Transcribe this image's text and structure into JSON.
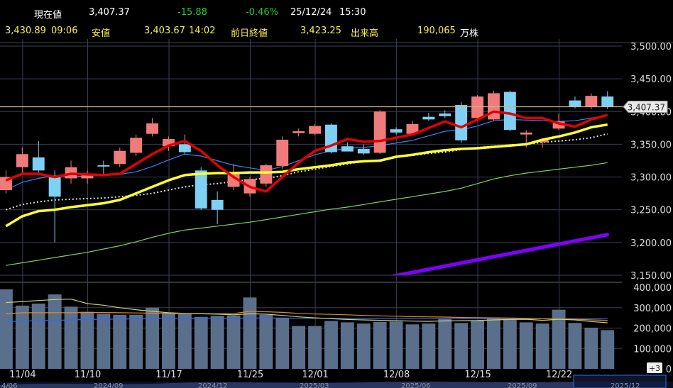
{
  "header": {
    "row1": {
      "label_current": "現在値",
      "current": "3,407.37",
      "change": "-15.88",
      "change_pct": "-0.46%",
      "date": "25/12/24",
      "time": "15:30"
    },
    "row2": {
      "high": "3,430.89",
      "high_time": "09:06",
      "label_low": "安値",
      "low": "3,403.67",
      "low_time": "14:02",
      "label_prev": "前日終値",
      "prev": "3,423.25",
      "label_volume": "出来高",
      "volume": "190,065",
      "volume_unit": "万株"
    }
  },
  "colors": {
    "up": "#f07b7b",
    "down": "#7fd0f5",
    "ma5": "#e30000",
    "ma25": "#ffff33",
    "ma75": "#d9d9d9",
    "ma_blue": "#3b82f6",
    "ma_green": "#7bd35a",
    "ma_purple": "#8000ff",
    "grid": "#3a3f55",
    "volume_bar": "#5a6f8c",
    "price_line": "#ccb88a"
  },
  "chart_data": {
    "type": "candlestick",
    "price_axis": {
      "min": 3150,
      "max": 3500,
      "ticks": [
        "3,500.00",
        "3,450.00",
        "3,400.00",
        "3,350.00",
        "3,300.00",
        "3,250.00",
        "3,200.00",
        "3,150.00"
      ]
    },
    "volume_axis": {
      "min": 0,
      "max": 400000,
      "ticks": [
        "400,000",
        "300,000",
        "200,000",
        "100,000",
        "0"
      ]
    },
    "x_labels": [
      "11/04",
      "11/10",
      "11/17",
      "11/25",
      "12/01",
      "12/08",
      "12/15",
      "12/22"
    ],
    "x_label_index": [
      1,
      5,
      10,
      15,
      19,
      24,
      29,
      34
    ],
    "last_price_label": "3,407.37",
    "last_price": 3407.37,
    "candles": [
      {
        "o": 3280,
        "h": 3310,
        "l": 3275,
        "c": 3300
      },
      {
        "o": 3315,
        "h": 3345,
        "l": 3305,
        "c": 3335
      },
      {
        "o": 3330,
        "h": 3355,
        "l": 3305,
        "c": 3310
      },
      {
        "o": 3300,
        "h": 3310,
        "l": 3200,
        "c": 3270
      },
      {
        "o": 3298,
        "h": 3325,
        "l": 3290,
        "c": 3315
      },
      {
        "o": 3298,
        "h": 3310,
        "l": 3290,
        "c": 3305
      },
      {
        "o": 3318,
        "h": 3325,
        "l": 3305,
        "c": 3316
      },
      {
        "o": 3320,
        "h": 3345,
        "l": 3315,
        "c": 3340
      },
      {
        "o": 3337,
        "h": 3365,
        "l": 3332,
        "c": 3360
      },
      {
        "o": 3366,
        "h": 3390,
        "l": 3362,
        "c": 3382
      },
      {
        "o": 3347,
        "h": 3362,
        "l": 3340,
        "c": 3358
      },
      {
        "o": 3350,
        "h": 3365,
        "l": 3335,
        "c": 3338
      },
      {
        "o": 3310,
        "h": 3315,
        "l": 3250,
        "c": 3252
      },
      {
        "o": 3265,
        "h": 3278,
        "l": 3228,
        "c": 3250
      },
      {
        "o": 3285,
        "h": 3320,
        "l": 3280,
        "c": 3305
      },
      {
        "o": 3275,
        "h": 3300,
        "l": 3270,
        "c": 3297
      },
      {
        "o": 3290,
        "h": 3320,
        "l": 3285,
        "c": 3318
      },
      {
        "o": 3317,
        "h": 3362,
        "l": 3312,
        "c": 3357
      },
      {
        "o": 3367,
        "h": 3374,
        "l": 3362,
        "c": 3370
      },
      {
        "o": 3366,
        "h": 3381,
        "l": 3364,
        "c": 3378
      },
      {
        "o": 3380,
        "h": 3382,
        "l": 3336,
        "c": 3338
      },
      {
        "o": 3347,
        "h": 3353,
        "l": 3340,
        "c": 3339
      },
      {
        "o": 3343,
        "h": 3350,
        "l": 3334,
        "c": 3336
      },
      {
        "o": 3337,
        "h": 3402,
        "l": 3335,
        "c": 3400
      },
      {
        "o": 3373,
        "h": 3376,
        "l": 3365,
        "c": 3368
      },
      {
        "o": 3366,
        "h": 3386,
        "l": 3364,
        "c": 3381
      },
      {
        "o": 3392,
        "h": 3398,
        "l": 3386,
        "c": 3388
      },
      {
        "o": 3397,
        "h": 3402,
        "l": 3390,
        "c": 3393
      },
      {
        "o": 3410,
        "h": 3415,
        "l": 3352,
        "c": 3356
      },
      {
        "o": 3390,
        "h": 3425,
        "l": 3385,
        "c": 3423
      },
      {
        "o": 3388,
        "h": 3432,
        "l": 3386,
        "c": 3428
      },
      {
        "o": 3430,
        "h": 3432,
        "l": 3370,
        "c": 3372
      },
      {
        "o": 3365,
        "h": 3372,
        "l": 3345,
        "c": 3368
      },
      {
        "o": 3353,
        "h": 3358,
        "l": 3345,
        "c": 3357
      },
      {
        "o": 3374,
        "h": 3397,
        "l": 3372,
        "c": 3385
      },
      {
        "o": 3417,
        "h": 3423,
        "l": 3405,
        "c": 3407
      },
      {
        "o": 3408,
        "h": 3428,
        "l": 3404,
        "c": 3424
      },
      {
        "o": 3423,
        "h": 3431,
        "l": 3404,
        "c": 3407
      }
    ],
    "volume": [
      390000,
      310000,
      320000,
      365000,
      305000,
      280000,
      270000,
      265000,
      265000,
      300000,
      275000,
      268000,
      255000,
      260000,
      262000,
      350000,
      265000,
      250000,
      210000,
      210000,
      235000,
      228000,
      222000,
      230000,
      232000,
      218000,
      222000,
      248000,
      225000,
      238000,
      252000,
      242000,
      228000,
      222000,
      290000,
      225000,
      202000,
      190000
    ],
    "ma5": [
      3295,
      3305,
      3305,
      3300,
      3305,
      3304,
      3303,
      3305,
      3320,
      3335,
      3348,
      3355,
      3340,
      3318,
      3300,
      3285,
      3278,
      3300,
      3322,
      3340,
      3348,
      3358,
      3354,
      3355,
      3360,
      3365,
      3375,
      3385,
      3376,
      3388,
      3400,
      3397,
      3390,
      3390,
      3382,
      3377,
      3388,
      3395
    ],
    "ma25": [
      3225,
      3240,
      3248,
      3250,
      3254,
      3257,
      3260,
      3265,
      3275,
      3285,
      3295,
      3303,
      3305,
      3306,
      3306,
      3307,
      3307,
      3308,
      3312,
      3315,
      3318,
      3322,
      3324,
      3325,
      3331,
      3334,
      3338,
      3341,
      3343,
      3344,
      3346,
      3348,
      3350,
      3357,
      3362,
      3368,
      3376,
      3380
    ],
    "ma75": [
      3250,
      3258,
      3262,
      3265,
      3266,
      3267,
      3268,
      3270,
      3272,
      3275,
      3280,
      3285,
      3288,
      3290,
      3293,
      3296,
      3298,
      3302,
      3308,
      3312,
      3316,
      3320,
      3324,
      3326,
      3330,
      3333,
      3336,
      3338,
      3342,
      3345,
      3347,
      3349,
      3350,
      3353,
      3355,
      3357,
      3360,
      3366
    ],
    "ma_blue": [
      3280,
      3292,
      3298,
      3302,
      3300,
      3302,
      3303,
      3304,
      3308,
      3316,
      3326,
      3335,
      3332,
      3325,
      3318,
      3314,
      3310,
      3316,
      3325,
      3334,
      3340,
      3344,
      3345,
      3348,
      3352,
      3356,
      3363,
      3370,
      3372,
      3378,
      3386,
      3388,
      3387,
      3386,
      3385,
      3386,
      3390,
      3394
    ],
    "ma_green": [
      3165,
      3169,
      3173,
      3177,
      3181,
      3185,
      3190,
      3195,
      3201,
      3208,
      3214,
      3219,
      3222,
      3225,
      3228,
      3231,
      3235,
      3239,
      3243,
      3247,
      3251,
      3254,
      3258,
      3262,
      3266,
      3270,
      3274,
      3278,
      3283,
      3290,
      3297,
      3302,
      3306,
      3309,
      3312,
      3315,
      3318,
      3322
    ],
    "ma_purple": {
      "from_index": 24.2,
      "values_start": 3148,
      "values_end": 3212
    },
    "volume_ma_orange": [
      270000,
      275000,
      275000,
      275000,
      275000,
      276000,
      276000,
      275000,
      274000,
      273000,
      272000,
      271000,
      270000,
      270000,
      271000,
      282000,
      280000,
      277000,
      272000,
      269000,
      267000,
      265000,
      262000,
      260000,
      258000,
      256000,
      255000,
      254000,
      252000,
      251000,
      250000,
      249000,
      248000,
      246000,
      245000,
      243000,
      240000,
      238000
    ],
    "volume_ma_yellow": [
      325000,
      330000,
      335000,
      340000,
      342000,
      320000,
      312000,
      300000,
      290000,
      282000,
      275000,
      272000,
      270000,
      268000,
      265000,
      270000,
      268000,
      262000,
      255000,
      250000,
      246000,
      242000,
      240000,
      238000,
      236000,
      234000,
      233000,
      235000,
      236000,
      237000,
      240000,
      242000,
      243000,
      238000,
      243000,
      240000,
      232000,
      226000
    ],
    "volume_ma_blue": [
      232000,
      234000,
      236000,
      238000,
      240000,
      242000,
      243000,
      244000,
      245000,
      246000,
      246000,
      247000,
      247000,
      248000,
      248000,
      249000,
      249000,
      249000,
      248000,
      248000,
      248000,
      247000,
      247000,
      247000,
      246000,
      246000,
      246000,
      246000,
      246000,
      246000,
      246000,
      246000,
      246000,
      246000,
      246000,
      246000,
      246000,
      246000
    ]
  },
  "navigator": {
    "labels": [
      "4/06",
      "2024/09",
      "2024/12",
      "2025/03",
      "2025/06",
      "2025/09",
      "2025/12"
    ],
    "badge": "+3"
  }
}
